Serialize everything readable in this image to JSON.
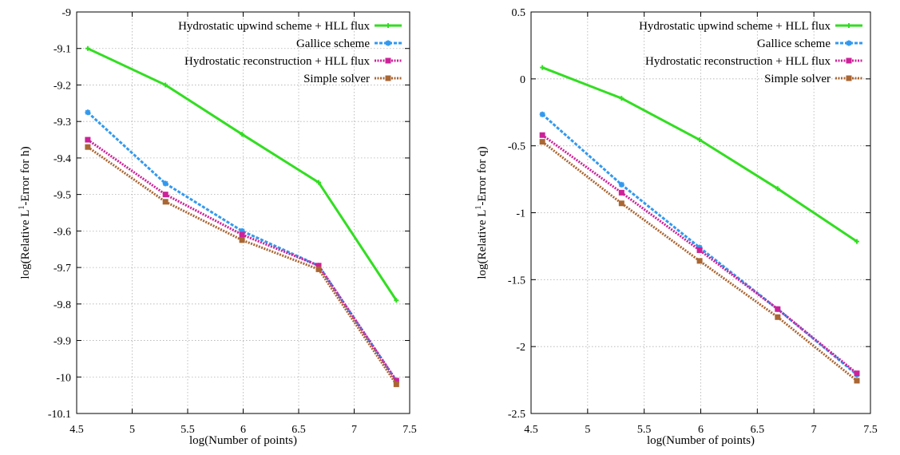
{
  "chart_data": [
    {
      "type": "line",
      "title": "",
      "xlabel": "log(Number of points)",
      "ylabel_prefix": "log(Relative L",
      "ylabel_sup": "1",
      "ylabel_suffix": "-Error for h)",
      "xlim": [
        4.5,
        7.5
      ],
      "ylim": [
        -10.1,
        -9
      ],
      "xticks": [
        4.5,
        5,
        5.5,
        6,
        6.5,
        7,
        7.5
      ],
      "xtick_labels": [
        "4.5",
        "5",
        "5.5",
        "6",
        "6.5",
        "7",
        "7.5"
      ],
      "yticks": [
        -9,
        -9.1,
        -9.2,
        -9.3,
        -9.4,
        -9.5,
        -9.6,
        -9.7,
        -9.8,
        -9.9,
        -10,
        -10.1
      ],
      "ytick_labels": [
        "-9",
        "-9.1",
        "-9.2",
        "-9.3",
        "-9.4",
        "-9.5",
        "-9.6",
        "-9.7",
        "-9.8",
        "-9.9",
        "-10",
        "-10.1"
      ],
      "grid": true,
      "legend_position": "top-right",
      "series": [
        {
          "name": "Hydrostatic upwind scheme + HLL flux",
          "color": "#33dd22",
          "style": "solid",
          "marker": "plus",
          "x": [
            4.6,
            5.3,
            5.99,
            6.68,
            7.38
          ],
          "y": [
            -9.1,
            -9.2,
            -9.335,
            -9.467,
            -9.79
          ]
        },
        {
          "name": "Gallice scheme",
          "color": "#3399ee",
          "style": "dashed",
          "marker": "star",
          "x": [
            4.6,
            5.3,
            5.99,
            6.68,
            7.38
          ],
          "y": [
            -9.275,
            -9.47,
            -9.6,
            -9.695,
            -10.01
          ]
        },
        {
          "name": "Hydrostatic reconstruction + HLL flux",
          "color": "#cc2299",
          "style": "dotted",
          "marker": "square",
          "x": [
            4.6,
            5.3,
            5.99,
            6.68,
            7.38
          ],
          "y": [
            -9.35,
            -9.5,
            -9.61,
            -9.695,
            -10.01
          ]
        },
        {
          "name": "Simple solver",
          "color": "#aa6633",
          "style": "dotted",
          "marker": "square",
          "x": [
            4.6,
            5.3,
            5.99,
            6.68,
            7.38
          ],
          "y": [
            -9.37,
            -9.52,
            -9.625,
            -9.705,
            -10.02
          ]
        }
      ]
    },
    {
      "type": "line",
      "title": "",
      "xlabel": "log(Number of points)",
      "ylabel_prefix": "log(Relative L",
      "ylabel_sup": "1",
      "ylabel_suffix": "-Error for q)",
      "xlim": [
        4.5,
        7.5
      ],
      "ylim": [
        -2.5,
        0.5
      ],
      "xticks": [
        4.5,
        5,
        5.5,
        6,
        6.5,
        7,
        7.5
      ],
      "xtick_labels": [
        "4.5",
        "5",
        "5.5",
        "6",
        "6.5",
        "7",
        "7.5"
      ],
      "yticks": [
        0.5,
        0,
        -0.5,
        -1,
        -1.5,
        -2,
        -2.5
      ],
      "ytick_labels": [
        "0.5",
        "0",
        "-0.5",
        "-1",
        "-1.5",
        "-2",
        "-2.5"
      ],
      "grid": true,
      "legend_position": "top-right",
      "series": [
        {
          "name": "Hydrostatic upwind scheme + HLL flux",
          "color": "#33dd22",
          "style": "solid",
          "marker": "plus",
          "x": [
            4.6,
            5.3,
            5.99,
            6.68,
            7.38
          ],
          "y": [
            0.085,
            -0.145,
            -0.455,
            -0.82,
            -1.215
          ]
        },
        {
          "name": "Gallice scheme",
          "color": "#3399ee",
          "style": "dashed",
          "marker": "star",
          "x": [
            4.6,
            5.3,
            5.99,
            6.68,
            7.38
          ],
          "y": [
            -0.265,
            -0.79,
            -1.26,
            -1.72,
            -2.21
          ]
        },
        {
          "name": "Hydrostatic reconstruction + HLL flux",
          "color": "#cc2299",
          "style": "dotted",
          "marker": "square",
          "x": [
            4.6,
            5.3,
            5.99,
            6.68,
            7.38
          ],
          "y": [
            -0.42,
            -0.85,
            -1.28,
            -1.72,
            -2.2
          ]
        },
        {
          "name": "Simple solver",
          "color": "#aa6633",
          "style": "dotted",
          "marker": "square",
          "x": [
            4.6,
            5.3,
            5.99,
            6.68,
            7.38
          ],
          "y": [
            -0.47,
            -0.93,
            -1.36,
            -1.78,
            -2.255
          ]
        }
      ]
    }
  ]
}
